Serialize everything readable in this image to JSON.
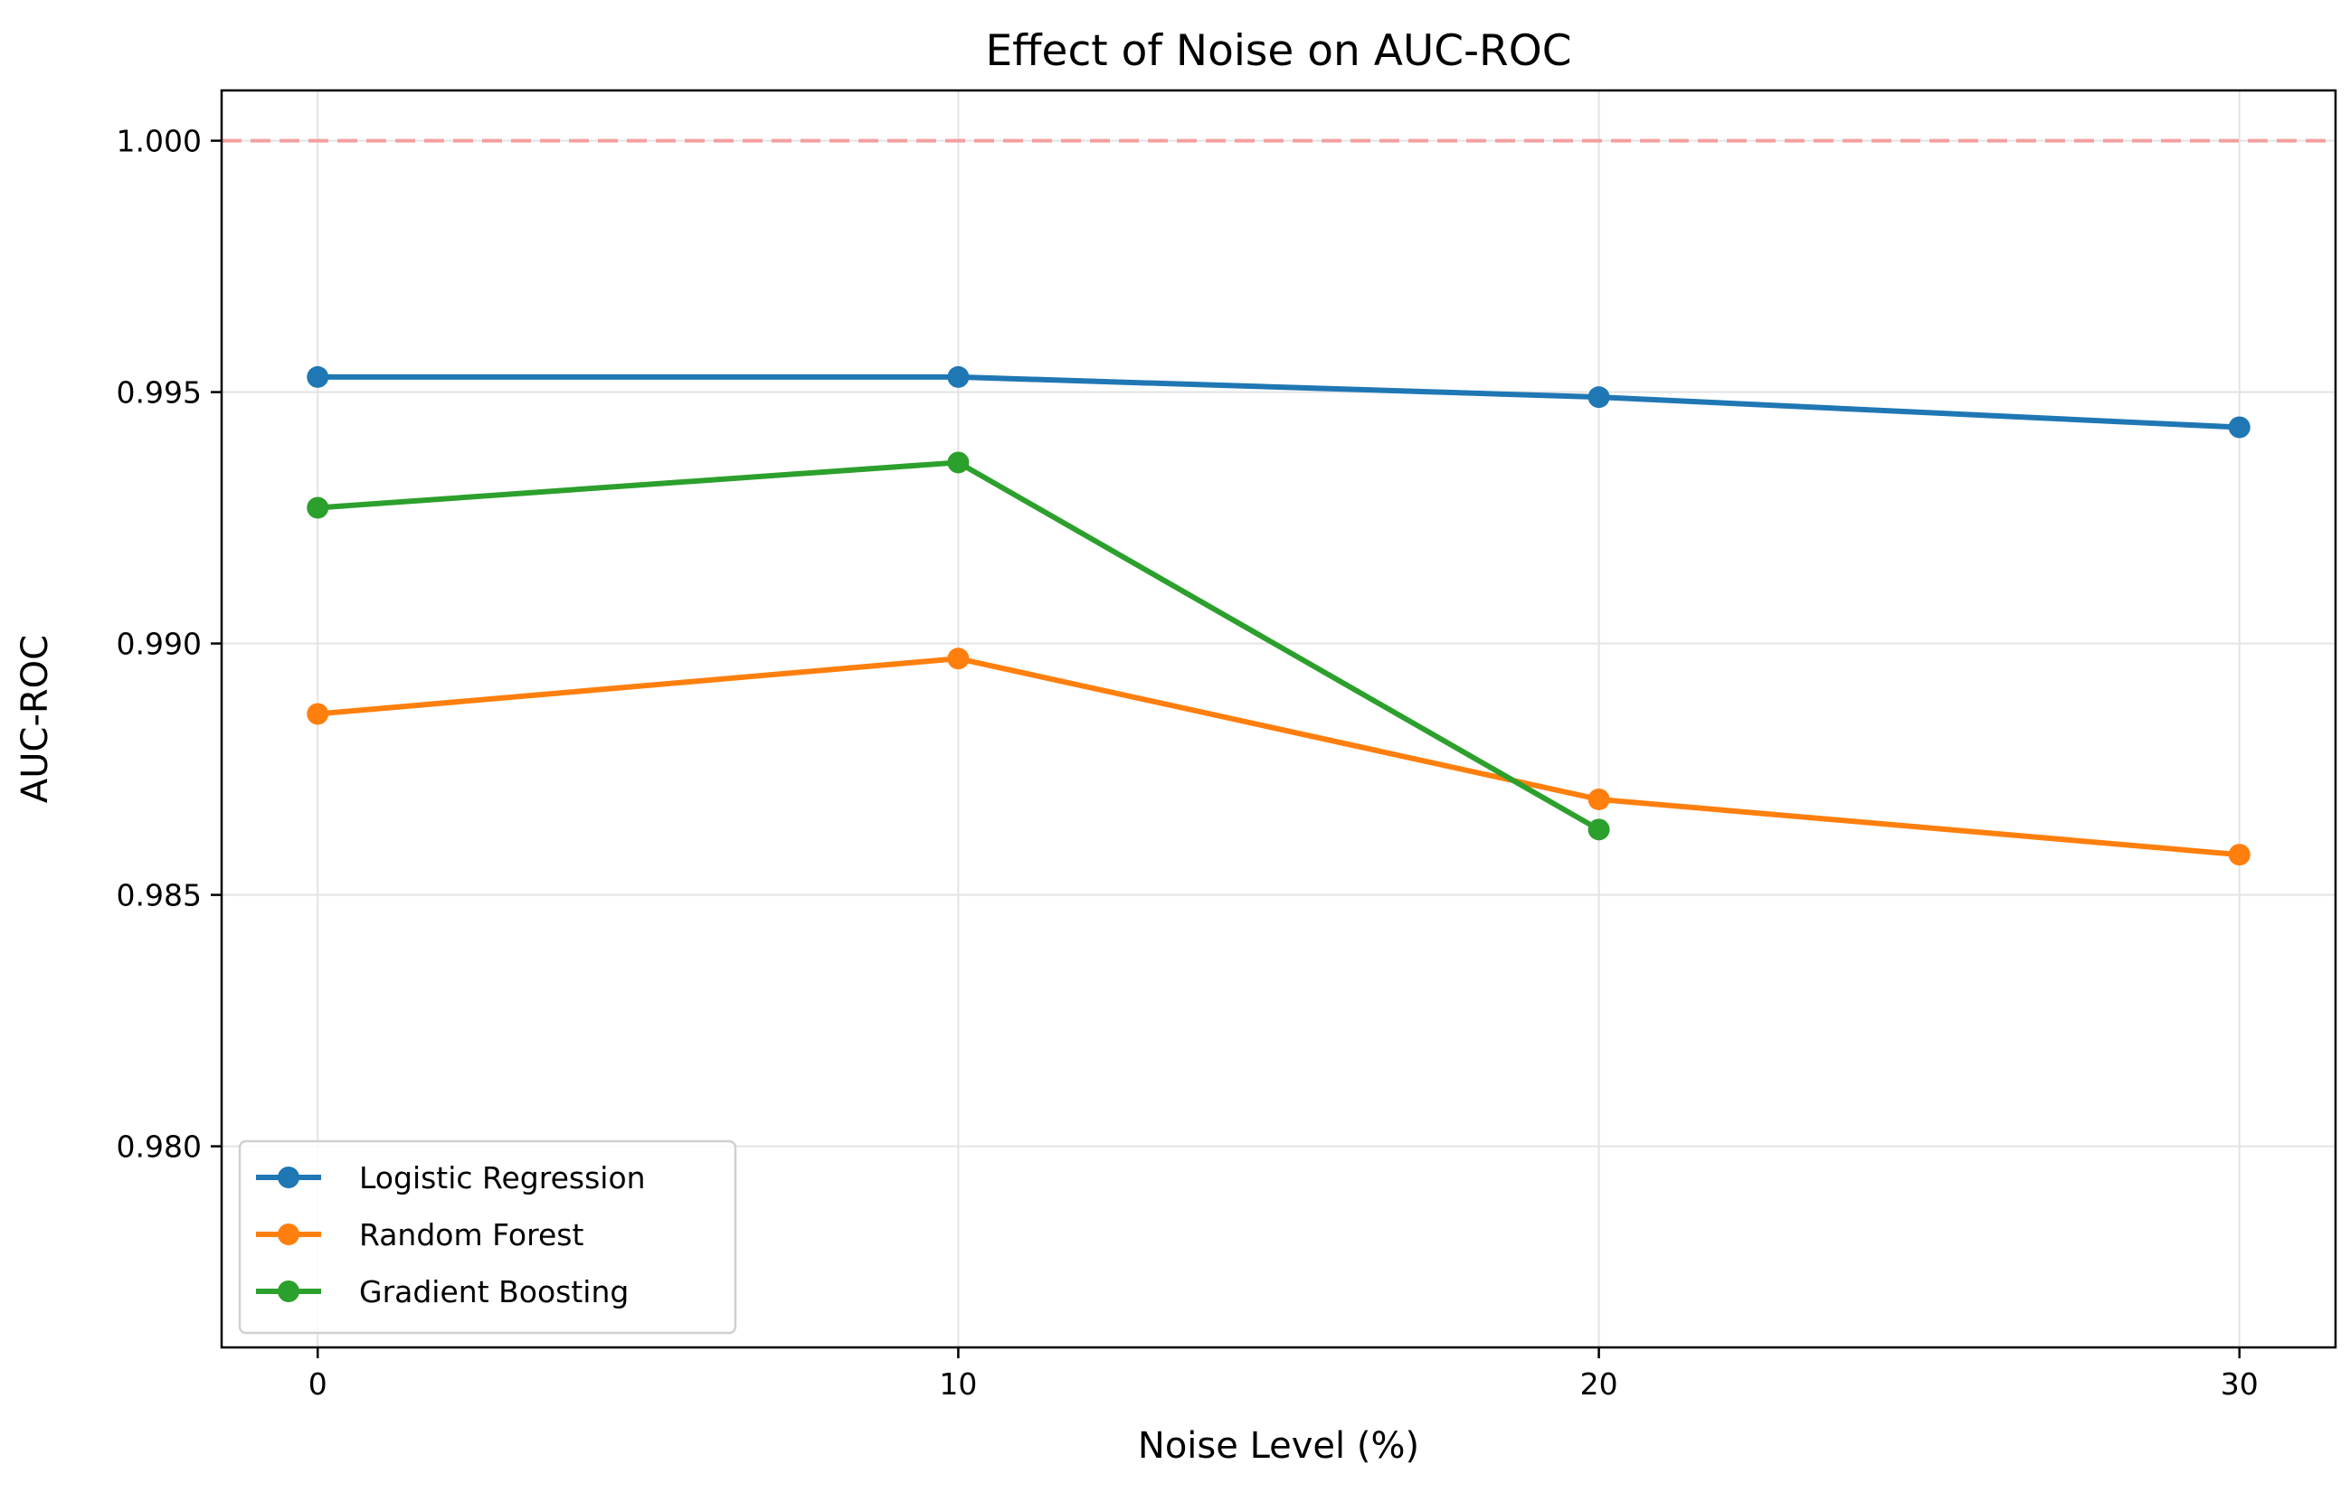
{
  "chart_data": {
    "type": "line",
    "title": "Effect of Noise on AUC-ROC",
    "xlabel": "Noise Level (%)",
    "ylabel": "AUC-ROC",
    "x": [
      0,
      10,
      20,
      30
    ],
    "x_ticks": [
      "0",
      "10",
      "20",
      "30"
    ],
    "y_ticks": [
      "0.980",
      "0.985",
      "0.990",
      "0.995",
      "1.000"
    ],
    "y_tick_values": [
      0.98,
      0.985,
      0.99,
      0.995,
      1.0
    ],
    "xlim": [
      -1.5,
      31.5
    ],
    "ylim": [
      0.976,
      1.001
    ],
    "grid": true,
    "legend_position": "lower-left",
    "reference_line": {
      "y": 1.0,
      "style": "dashed",
      "color": "#f4a0a0"
    },
    "series": [
      {
        "name": "Logistic Regression",
        "color": "#1f77b4",
        "x": [
          0,
          10,
          20,
          30
        ],
        "values": [
          0.9953,
          0.9953,
          0.9949,
          0.9943
        ]
      },
      {
        "name": "Random Forest",
        "color": "#ff7f0e",
        "x": [
          0,
          10,
          20,
          30
        ],
        "values": [
          0.9886,
          0.9897,
          0.9869,
          0.9858
        ]
      },
      {
        "name": "Gradient Boosting",
        "color": "#2ca02c",
        "x": [
          0,
          10,
          20
        ],
        "values": [
          0.9927,
          0.9936,
          0.9863
        ]
      }
    ]
  }
}
